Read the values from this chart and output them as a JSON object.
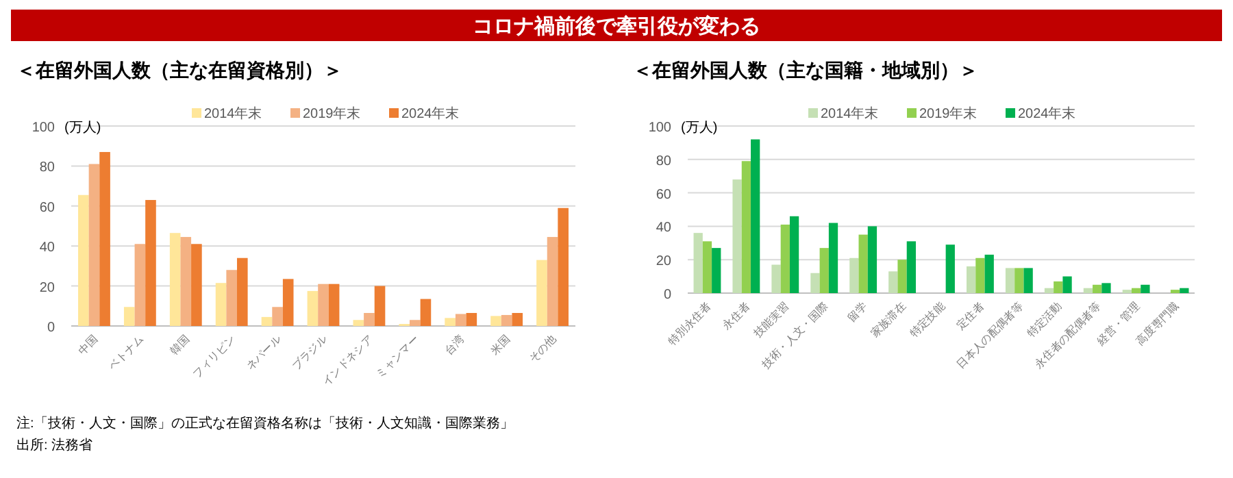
{
  "chart_data": [
    {
      "type": "bar",
      "title": "コロナ禍前後で牽引役が変わる",
      "subtitle": "＜在留外国人数（主な在留資格別）＞",
      "ylabel": "(万人)",
      "categories": [
        "中国",
        "ベトナム",
        "韓国",
        "フィリピン",
        "ネパール",
        "ブラジル",
        "インドネシア",
        "ミャンマー",
        "台湾",
        "米国",
        "その他"
      ],
      "series": [
        {
          "name": "2014年末",
          "color": "#ffe699",
          "values": [
            65.5,
            9.5,
            46.5,
            21.5,
            4.5,
            17.5,
            3,
            1,
            4,
            5,
            33
          ]
        },
        {
          "name": "2019年末",
          "color": "#f4b183",
          "values": [
            81,
            41,
            44.5,
            28,
            9.5,
            21,
            6.5,
            3,
            6,
            5.5,
            44.5
          ]
        },
        {
          "name": "2024年末",
          "color": "#ed7d31",
          "values": [
            87,
            63,
            41,
            34,
            23.5,
            21,
            20,
            13.5,
            6.5,
            6.5,
            59
          ]
        }
      ],
      "ylim": [
        0,
        100
      ],
      "yticks": [
        0,
        20,
        40,
        60,
        80,
        100
      ],
      "grid": "y",
      "legend": "top",
      "annotations": [
        "注:「技術・人文・国際」の正式な在留資格名称は「技術・人文知識・国際業務」",
        "出所: 法務省"
      ]
    },
    {
      "type": "bar",
      "subtitle": "＜在留外国人数（主な国籍・地域別）＞",
      "ylabel": "(万人)",
      "categories": [
        "特別永住者",
        "永住者",
        "技能実習",
        "技術・人文・国際",
        "留学",
        "家族滞在",
        "特定技能",
        "定住者",
        "日本人の配偶者等",
        "特定活動",
        "永住者の配偶者等",
        "経営・管理",
        "高度専門職"
      ],
      "series": [
        {
          "name": "2014年末",
          "color": "#c5e0b4",
          "values": [
            36,
            68,
            17,
            12,
            21,
            13,
            null,
            16,
            15,
            3,
            3,
            2,
            null
          ]
        },
        {
          "name": "2019年末",
          "color": "#92d050",
          "values": [
            31,
            79,
            41,
            27,
            35,
            20,
            null,
            21,
            15,
            7,
            5,
            3,
            2
          ]
        },
        {
          "name": "2024年末",
          "color": "#00b050",
          "values": [
            27,
            92,
            46,
            42,
            40,
            31,
            29,
            23,
            15,
            10,
            6,
            5,
            3
          ]
        }
      ],
      "ylim": [
        0,
        100
      ],
      "yticks": [
        0,
        20,
        40,
        60,
        80,
        100
      ],
      "grid": "y",
      "legend": "top"
    }
  ]
}
